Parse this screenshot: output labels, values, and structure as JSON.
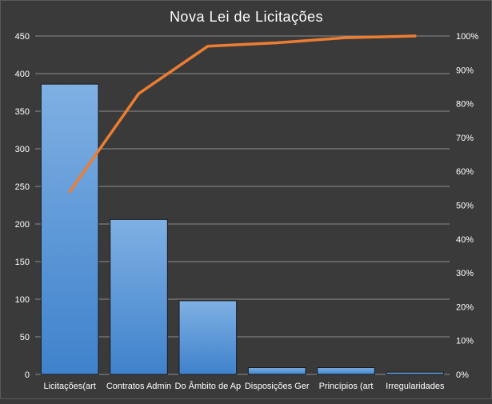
{
  "chart_data": {
    "type": "bar",
    "title": "Nova Lei de Licitações",
    "categories": [
      "Licitações(art",
      "Contratos Admin",
      "Do Âmbito de Ap",
      "Disposições Ger",
      "Princípios (art",
      "Irregularidades"
    ],
    "series": [
      {
        "type": "bar",
        "axis": "left",
        "values": [
          386,
          206,
          98,
          9,
          9,
          3
        ]
      },
      {
        "type": "line",
        "axis": "right",
        "values": [
          0.54,
          0.83,
          0.97,
          0.98,
          0.995,
          1.0
        ]
      }
    ],
    "ylim": [
      0,
      450
    ],
    "y_ticks": [
      "0",
      "50",
      "100",
      "150",
      "200",
      "250",
      "300",
      "350",
      "400",
      "450"
    ],
    "y2lim": [
      0,
      1
    ],
    "y2_ticks": [
      "0%",
      "10%",
      "20%",
      "30%",
      "40%",
      "50%",
      "60%",
      "70%",
      "80%",
      "90%",
      "100%"
    ],
    "grid": true,
    "legend": "none",
    "colors": {
      "background": "#3a3a3a",
      "bar_fill_top": "#7fb0e3",
      "bar_fill_bottom": "#3f82cc",
      "bar_stroke": "#1a1a1a",
      "line": "#ed7d31",
      "grid": "#8c8c8c",
      "text": "#ffffff"
    }
  }
}
